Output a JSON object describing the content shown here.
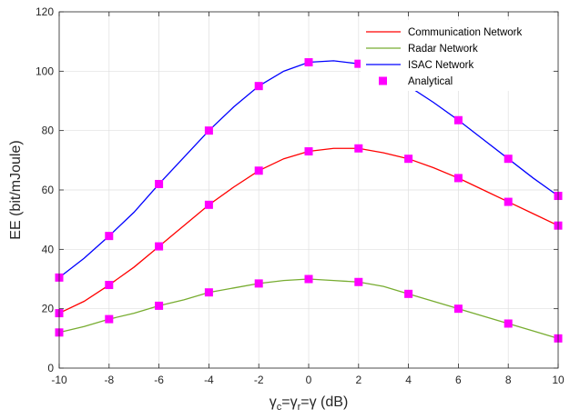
{
  "chart_data": {
    "type": "line",
    "title": "",
    "xlabel_parts": [
      "γ",
      "c",
      "=γ",
      "r",
      "=γ (dB)"
    ],
    "ylabel": "EE (bit/mJoule)",
    "xlim": [
      -10,
      10
    ],
    "ylim": [
      0,
      120
    ],
    "xticks": [
      -10,
      -8,
      -6,
      -4,
      -2,
      0,
      2,
      4,
      6,
      8,
      10
    ],
    "yticks": [
      0,
      20,
      40,
      60,
      80,
      100,
      120
    ],
    "grid": true,
    "legend_position": "top-right",
    "series": [
      {
        "name": "Communication Network",
        "color": "#ff0000",
        "style": "line",
        "x": [
          -10,
          -9,
          -8,
          -7,
          -6,
          -5,
          -4,
          -3,
          -2,
          -1,
          0,
          1,
          2,
          3,
          4,
          5,
          6,
          7,
          8,
          9,
          10
        ],
        "values": [
          18.5,
          22.5,
          28,
          34,
          41,
          48,
          55,
          61,
          66.5,
          70.5,
          73,
          74,
          74,
          72.5,
          70.5,
          67.5,
          64,
          60,
          56,
          52,
          48
        ]
      },
      {
        "name": "Radar Network",
        "color": "#77ac30",
        "style": "line",
        "x": [
          -10,
          -9,
          -8,
          -7,
          -6,
          -5,
          -4,
          -3,
          -2,
          -1,
          0,
          1,
          2,
          3,
          4,
          5,
          6,
          7,
          8,
          9,
          10
        ],
        "values": [
          12,
          14,
          16.5,
          18.5,
          21,
          23,
          25.5,
          27,
          28.5,
          29.5,
          30,
          29.5,
          29,
          27.5,
          25,
          22.5,
          20,
          17.5,
          15,
          12.5,
          10
        ]
      },
      {
        "name": "ISAC Network",
        "color": "#0000ff",
        "style": "line",
        "x": [
          -10,
          -9,
          -8,
          -7,
          -6,
          -5,
          -4,
          -3,
          -2,
          -1,
          0,
          1,
          2,
          3,
          4,
          5,
          6,
          7,
          8,
          9,
          10
        ],
        "values": [
          30.5,
          37,
          44.5,
          52.5,
          62,
          71,
          80,
          88,
          95,
          100,
          103,
          103.5,
          102.5,
          99,
          95,
          89.5,
          83.5,
          77,
          70.5,
          64,
          58
        ]
      },
      {
        "name": "Analytical",
        "color": "#ff00ff",
        "style": "marker",
        "points": [
          [
            -10,
            18.5
          ],
          [
            -8,
            28
          ],
          [
            -6,
            41
          ],
          [
            -4,
            55
          ],
          [
            -2,
            66.5
          ],
          [
            0,
            73
          ],
          [
            2,
            74
          ],
          [
            4,
            70.5
          ],
          [
            6,
            64
          ],
          [
            8,
            56
          ],
          [
            10,
            48
          ],
          [
            -10,
            12
          ],
          [
            -8,
            16.5
          ],
          [
            -6,
            21
          ],
          [
            -4,
            25.5
          ],
          [
            -2,
            28.5
          ],
          [
            0,
            30
          ],
          [
            2,
            29
          ],
          [
            4,
            25
          ],
          [
            6,
            20
          ],
          [
            8,
            15
          ],
          [
            10,
            10
          ],
          [
            -10,
            30.5
          ],
          [
            -8,
            44.5
          ],
          [
            -6,
            62
          ],
          [
            -4,
            80
          ],
          [
            -2,
            95
          ],
          [
            0,
            103
          ],
          [
            2,
            102.5
          ],
          [
            4,
            95
          ],
          [
            6,
            83.5
          ],
          [
            8,
            70.5
          ],
          [
            10,
            58
          ]
        ]
      }
    ]
  }
}
